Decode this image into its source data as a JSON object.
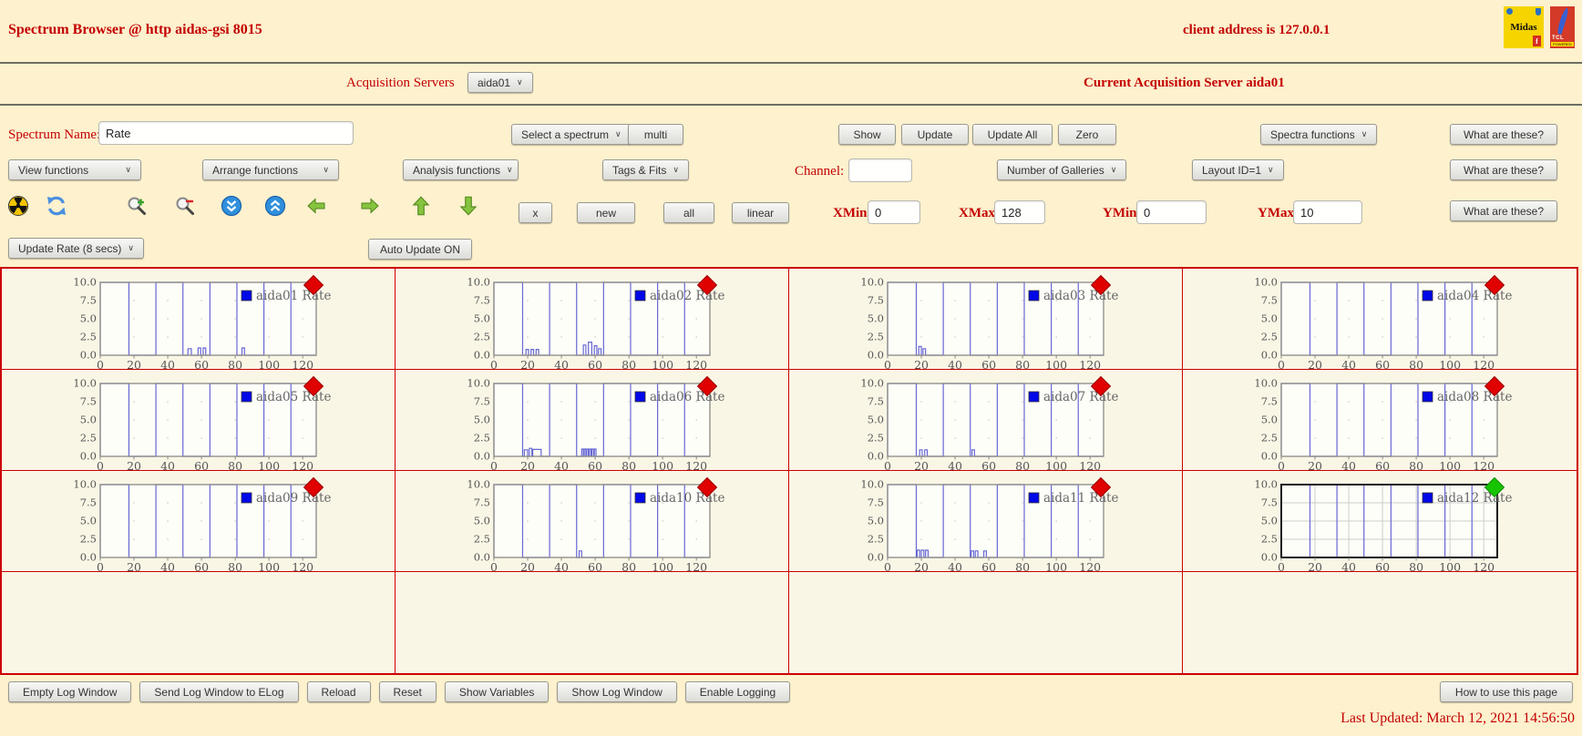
{
  "header": {
    "title": "Spectrum Browser @ http aidas-gsi 8015",
    "client_address": "client address is 127.0.0.1",
    "midas_logo": "Midas",
    "midas_f": "f",
    "tcl_text": "TCL",
    "tcl_powered": "POWERED"
  },
  "acquisition": {
    "label": "Acquisition Servers",
    "selected_server": "aida01",
    "current": "Current Acquisition Server aida01"
  },
  "help": {
    "what_are_these": "What are these?",
    "how_to": "How to use this page"
  },
  "spectrum_row": {
    "name_label": "Spectrum Name:",
    "name_value": "Rate",
    "select_spectrum": "Select a spectrum",
    "multi": "multi",
    "show": "Show",
    "update": "Update",
    "update_all": "Update All",
    "zero": "Zero",
    "spectra_functions": "Spectra functions"
  },
  "functions_row": {
    "view": "View functions",
    "arrange": "Arrange functions",
    "analysis": "Analysis functions",
    "tags": "Tags & Fits",
    "channel_label": "Channel:",
    "channel_value": "",
    "galleries": "Number of Galleries",
    "layout": "Layout ID=1"
  },
  "range_row": {
    "x_btn": "x",
    "new_btn": "new",
    "all_btn": "all",
    "linear_btn": "linear",
    "xmin_label": "XMin",
    "xmin": "0",
    "xmax_label": "XMax",
    "xmax": "128",
    "ymin_label": "YMin",
    "ymin": "0",
    "ymax_label": "YMax",
    "ymax": "10"
  },
  "update_row": {
    "rate": "Update Rate (8 secs)",
    "auto": "Auto Update ON"
  },
  "toolbar_icons": [
    "radiation-icon",
    "refresh-icon",
    "zoom-in-icon",
    "zoom-out-icon",
    "compress-vertical-icon",
    "expand-vertical-icon",
    "shift-left-icon",
    "shift-right-icon",
    "shift-up-icon",
    "shift-down-icon"
  ],
  "footer": {
    "buttons": [
      "Empty Log Window",
      "Send Log Window to ELog",
      "Reload",
      "Reset",
      "Show Variables",
      "Show Log Window",
      "Enable Logging"
    ],
    "last_updated": "Last Updated: March 12, 2021 14:56:50"
  },
  "chart_data": {
    "type": "line",
    "xlim": [
      0,
      128
    ],
    "ylim": [
      0,
      10
    ],
    "xticks": [
      0,
      20,
      40,
      60,
      80,
      100,
      120
    ],
    "ytick_labels": [
      "0.0",
      "2.5",
      "5.0",
      "7.5",
      "10.0"
    ],
    "ylabel": "",
    "xlabel": "",
    "line_color": "#6767d6",
    "plot_bg": "#fefef9",
    "legend_square_color": "#0008e8",
    "marker_colors": {
      "normal": "#e00000",
      "selected": "#17c400"
    },
    "high_value": 10,
    "low_value": 0,
    "low_intervals": [
      [
        17,
        33
      ],
      [
        49,
        65
      ],
      [
        81,
        97
      ],
      [
        113,
        128
      ]
    ],
    "galleries": [
      {
        "name": "aida01 Rate",
        "selected": false,
        "bumps": [
          [
            52,
            2,
            0.9
          ],
          [
            58,
            1.5,
            1.0
          ],
          [
            61,
            1.5,
            1.0
          ],
          [
            84,
            1.5,
            1.0
          ]
        ]
      },
      {
        "name": "aida02 Rate",
        "selected": false,
        "bumps": [
          [
            19,
            1.5,
            0.8
          ],
          [
            22,
            1.5,
            0.8
          ],
          [
            25,
            1.5,
            0.8
          ],
          [
            53,
            1.5,
            1.4
          ],
          [
            56,
            2,
            1.8
          ],
          [
            59.5,
            1.5,
            1.3
          ],
          [
            62,
            1.5,
            0.9
          ]
        ]
      },
      {
        "name": "aida03 Rate",
        "selected": false,
        "bumps": [
          [
            18.5,
            1.5,
            1.2
          ],
          [
            21,
            1.5,
            0.9
          ]
        ]
      },
      {
        "name": "aida04 Rate",
        "selected": false,
        "bumps": []
      },
      {
        "name": "aida05 Rate",
        "selected": false,
        "bumps": []
      },
      {
        "name": "aida06 Rate",
        "selected": false,
        "bumps": [
          [
            18,
            2,
            0.9
          ],
          [
            21,
            1.5,
            1.1
          ],
          [
            23,
            5,
            0.95
          ],
          [
            52,
            1,
            1.0
          ],
          [
            53.5,
            1,
            1.0
          ],
          [
            55,
            1,
            1.0
          ],
          [
            56.5,
            1,
            1.0
          ],
          [
            58,
            1,
            1.0
          ],
          [
            59.5,
            1,
            1.0
          ]
        ]
      },
      {
        "name": "aida07 Rate",
        "selected": false,
        "bumps": [
          [
            19,
            1.5,
            0.9
          ],
          [
            22,
            1.5,
            0.9
          ],
          [
            50,
            1.5,
            0.9
          ],
          [
            79,
            2,
            2.2
          ]
        ]
      },
      {
        "name": "aida08 Rate",
        "selected": false,
        "bumps": []
      },
      {
        "name": "aida09 Rate",
        "selected": false,
        "bumps": []
      },
      {
        "name": "aida10 Rate",
        "selected": false,
        "bumps": [
          [
            50.5,
            1.5,
            0.9
          ]
        ]
      },
      {
        "name": "aida11 Rate",
        "selected": false,
        "bumps": [
          [
            17.5,
            1.5,
            1.0
          ],
          [
            20,
            1.5,
            1.0
          ],
          [
            22.5,
            1.5,
            1.0
          ],
          [
            49.5,
            1.5,
            0.9
          ],
          [
            52,
            1.5,
            0.9
          ],
          [
            57,
            1.5,
            0.9
          ]
        ]
      },
      {
        "name": "aida12 Rate",
        "selected": true,
        "bumps": []
      }
    ],
    "empty_cells": 4
  }
}
